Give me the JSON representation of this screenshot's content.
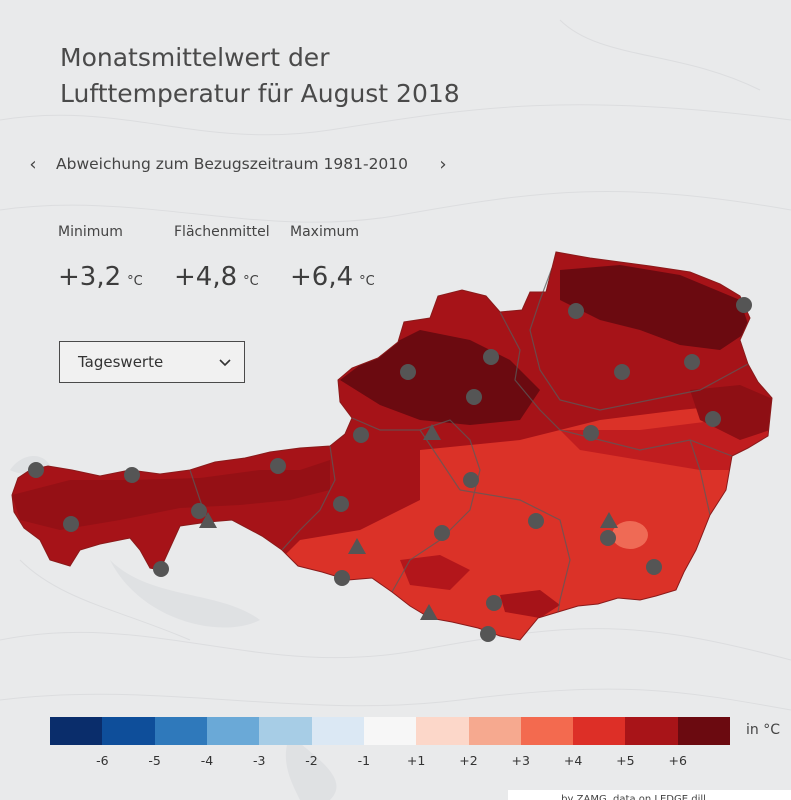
{
  "title": {
    "line1": "Monatsmittelwert der",
    "line2": "Lufttemperatur für August 2018"
  },
  "period": {
    "label": "Abweichung zum Bezugszeitraum 1981-2010",
    "prev_icon": "chevron-left-icon",
    "next_icon": "chevron-right-icon"
  },
  "stats": {
    "unit": "°C",
    "minimum": {
      "label": "Minimum",
      "value": "+3,2"
    },
    "mean": {
      "label": "Flächenmittel",
      "value": "+4,8"
    },
    "maximum": {
      "label": "Maximum",
      "value": "+6,4"
    }
  },
  "dropdown": {
    "selected": "Tageswerte",
    "icon": "chevron-down-icon"
  },
  "map": {
    "region": "Austria",
    "colors": {
      "dark": "#6b0a10",
      "main": "#a61318",
      "mid": "#c01d1f",
      "light": "#db3228",
      "pale": "#ef6a55",
      "marker": "#555555"
    }
  },
  "legend": {
    "unit": "in °C",
    "colors": [
      "#0a2d6b",
      "#0e4e9a",
      "#2f79bb",
      "#6aa9d7",
      "#a7cde6",
      "#dbe8f4",
      "#f7f7f7",
      "#fcd7c9",
      "#f6a98f",
      "#f36a4f",
      "#dd2f27",
      "#a81418",
      "#6b0a10"
    ],
    "ticks": [
      "-6",
      "-5",
      "-4",
      "-3",
      "-2",
      "-1",
      "+1",
      "+2",
      "+3",
      "+4",
      "+5",
      "+6"
    ]
  },
  "credit": "… by ZAMG, data on LEDGE dill"
}
